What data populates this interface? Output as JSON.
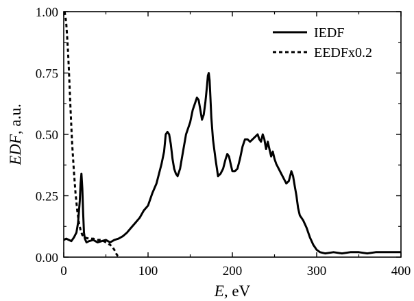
{
  "chart_data": {
    "type": "line",
    "title": "",
    "xlabel": {
      "var": "E",
      "unit": ", eV"
    },
    "ylabel": {
      "var": "EDF",
      "unit": ", a.u."
    },
    "xlim": [
      0,
      400
    ],
    "ylim": [
      0,
      1.0
    ],
    "xticks": [
      0,
      100,
      200,
      300,
      400
    ],
    "xtick_labels": [
      "0",
      "100",
      "200",
      "300",
      "400"
    ],
    "yticks": [
      0,
      0.25,
      0.5,
      0.75,
      1.0
    ],
    "ytick_labels": [
      "0.00",
      "0.25",
      "0.50",
      "0.75",
      "1.00"
    ],
    "grid": false,
    "legend_position": "top-right",
    "series": [
      {
        "name": "IEDF",
        "style": "solid",
        "color": "#000000",
        "x": [
          0,
          3,
          6,
          9,
          12,
          15,
          17,
          19,
          20,
          21,
          22,
          23,
          24,
          25,
          27,
          30,
          35,
          40,
          45,
          50,
          55,
          60,
          65,
          70,
          75,
          80,
          85,
          90,
          95,
          100,
          105,
          110,
          113,
          116,
          119,
          121,
          123,
          125,
          127,
          129,
          131,
          133,
          135,
          138,
          141,
          145,
          150,
          153,
          156,
          158,
          160,
          162,
          164,
          166,
          168,
          170,
          171,
          172,
          173,
          174,
          175,
          177,
          180,
          183,
          186,
          189,
          192,
          194,
          196,
          198,
          200,
          203,
          206,
          209,
          212,
          215,
          218,
          221,
          224,
          227,
          230,
          232,
          234,
          236,
          238,
          240,
          242,
          244,
          246,
          248,
          250,
          252,
          255,
          258,
          261,
          264,
          267,
          270,
          272,
          274,
          276,
          278,
          280,
          284,
          288,
          292,
          296,
          300,
          304,
          310,
          320,
          330,
          340,
          350,
          360,
          370,
          380,
          390,
          400
        ],
        "y": [
          0.07,
          0.075,
          0.07,
          0.065,
          0.08,
          0.1,
          0.14,
          0.23,
          0.3,
          0.34,
          0.28,
          0.18,
          0.1,
          0.075,
          0.06,
          0.065,
          0.07,
          0.06,
          0.065,
          0.07,
          0.06,
          0.07,
          0.075,
          0.085,
          0.1,
          0.12,
          0.14,
          0.16,
          0.19,
          0.21,
          0.26,
          0.3,
          0.34,
          0.38,
          0.43,
          0.5,
          0.51,
          0.5,
          0.46,
          0.4,
          0.36,
          0.34,
          0.33,
          0.36,
          0.42,
          0.5,
          0.55,
          0.6,
          0.63,
          0.65,
          0.64,
          0.6,
          0.56,
          0.58,
          0.63,
          0.7,
          0.74,
          0.75,
          0.72,
          0.65,
          0.57,
          0.48,
          0.4,
          0.33,
          0.34,
          0.36,
          0.4,
          0.42,
          0.41,
          0.38,
          0.35,
          0.35,
          0.36,
          0.4,
          0.45,
          0.48,
          0.48,
          0.47,
          0.48,
          0.49,
          0.5,
          0.48,
          0.47,
          0.5,
          0.48,
          0.44,
          0.47,
          0.44,
          0.41,
          0.43,
          0.4,
          0.38,
          0.36,
          0.34,
          0.32,
          0.3,
          0.31,
          0.35,
          0.33,
          0.29,
          0.25,
          0.2,
          0.17,
          0.15,
          0.12,
          0.08,
          0.05,
          0.03,
          0.02,
          0.015,
          0.02,
          0.015,
          0.02,
          0.02,
          0.015,
          0.02,
          0.02,
          0.02,
          0.02
        ]
      },
      {
        "name": "EEDFx0.2",
        "style": "dashed",
        "color": "#000000",
        "x": [
          1,
          2,
          3,
          4,
          5,
          6,
          7,
          8,
          9,
          10,
          12,
          14,
          16,
          18,
          20,
          22,
          25,
          30,
          35,
          40,
          45,
          50,
          55,
          58,
          60,
          62,
          64,
          66
        ],
        "y": [
          1.0,
          0.98,
          0.95,
          0.9,
          0.84,
          0.77,
          0.69,
          0.61,
          0.53,
          0.46,
          0.35,
          0.26,
          0.19,
          0.14,
          0.11,
          0.09,
          0.08,
          0.075,
          0.075,
          0.07,
          0.07,
          0.06,
          0.05,
          0.04,
          0.03,
          0.015,
          0.005,
          0.0
        ]
      }
    ]
  }
}
